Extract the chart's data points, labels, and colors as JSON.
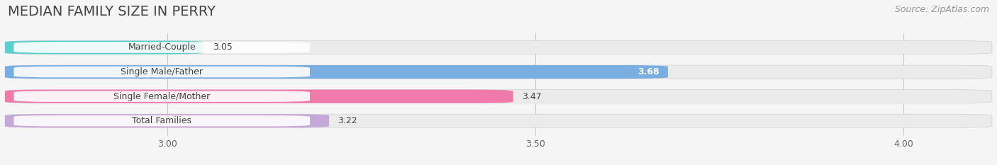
{
  "title": "MEDIAN FAMILY SIZE IN PERRY",
  "source": "Source: ZipAtlas.com",
  "categories": [
    "Married-Couple",
    "Single Male/Father",
    "Single Female/Mother",
    "Total Families"
  ],
  "values": [
    3.05,
    3.68,
    3.47,
    3.22
  ],
  "bar_colors": [
    "#5ecece",
    "#7aaee0",
    "#f07aaa",
    "#c4a8d8"
  ],
  "xmin": 2.78,
  "xmax": 4.12,
  "xticks": [
    3.0,
    3.5,
    4.0
  ],
  "background_color": "#f5f5f5",
  "bar_background": "#e6e6e6",
  "row_bg": "#efefef",
  "title_fontsize": 14,
  "source_fontsize": 9,
  "label_fontsize": 9,
  "value_fontsize": 9
}
